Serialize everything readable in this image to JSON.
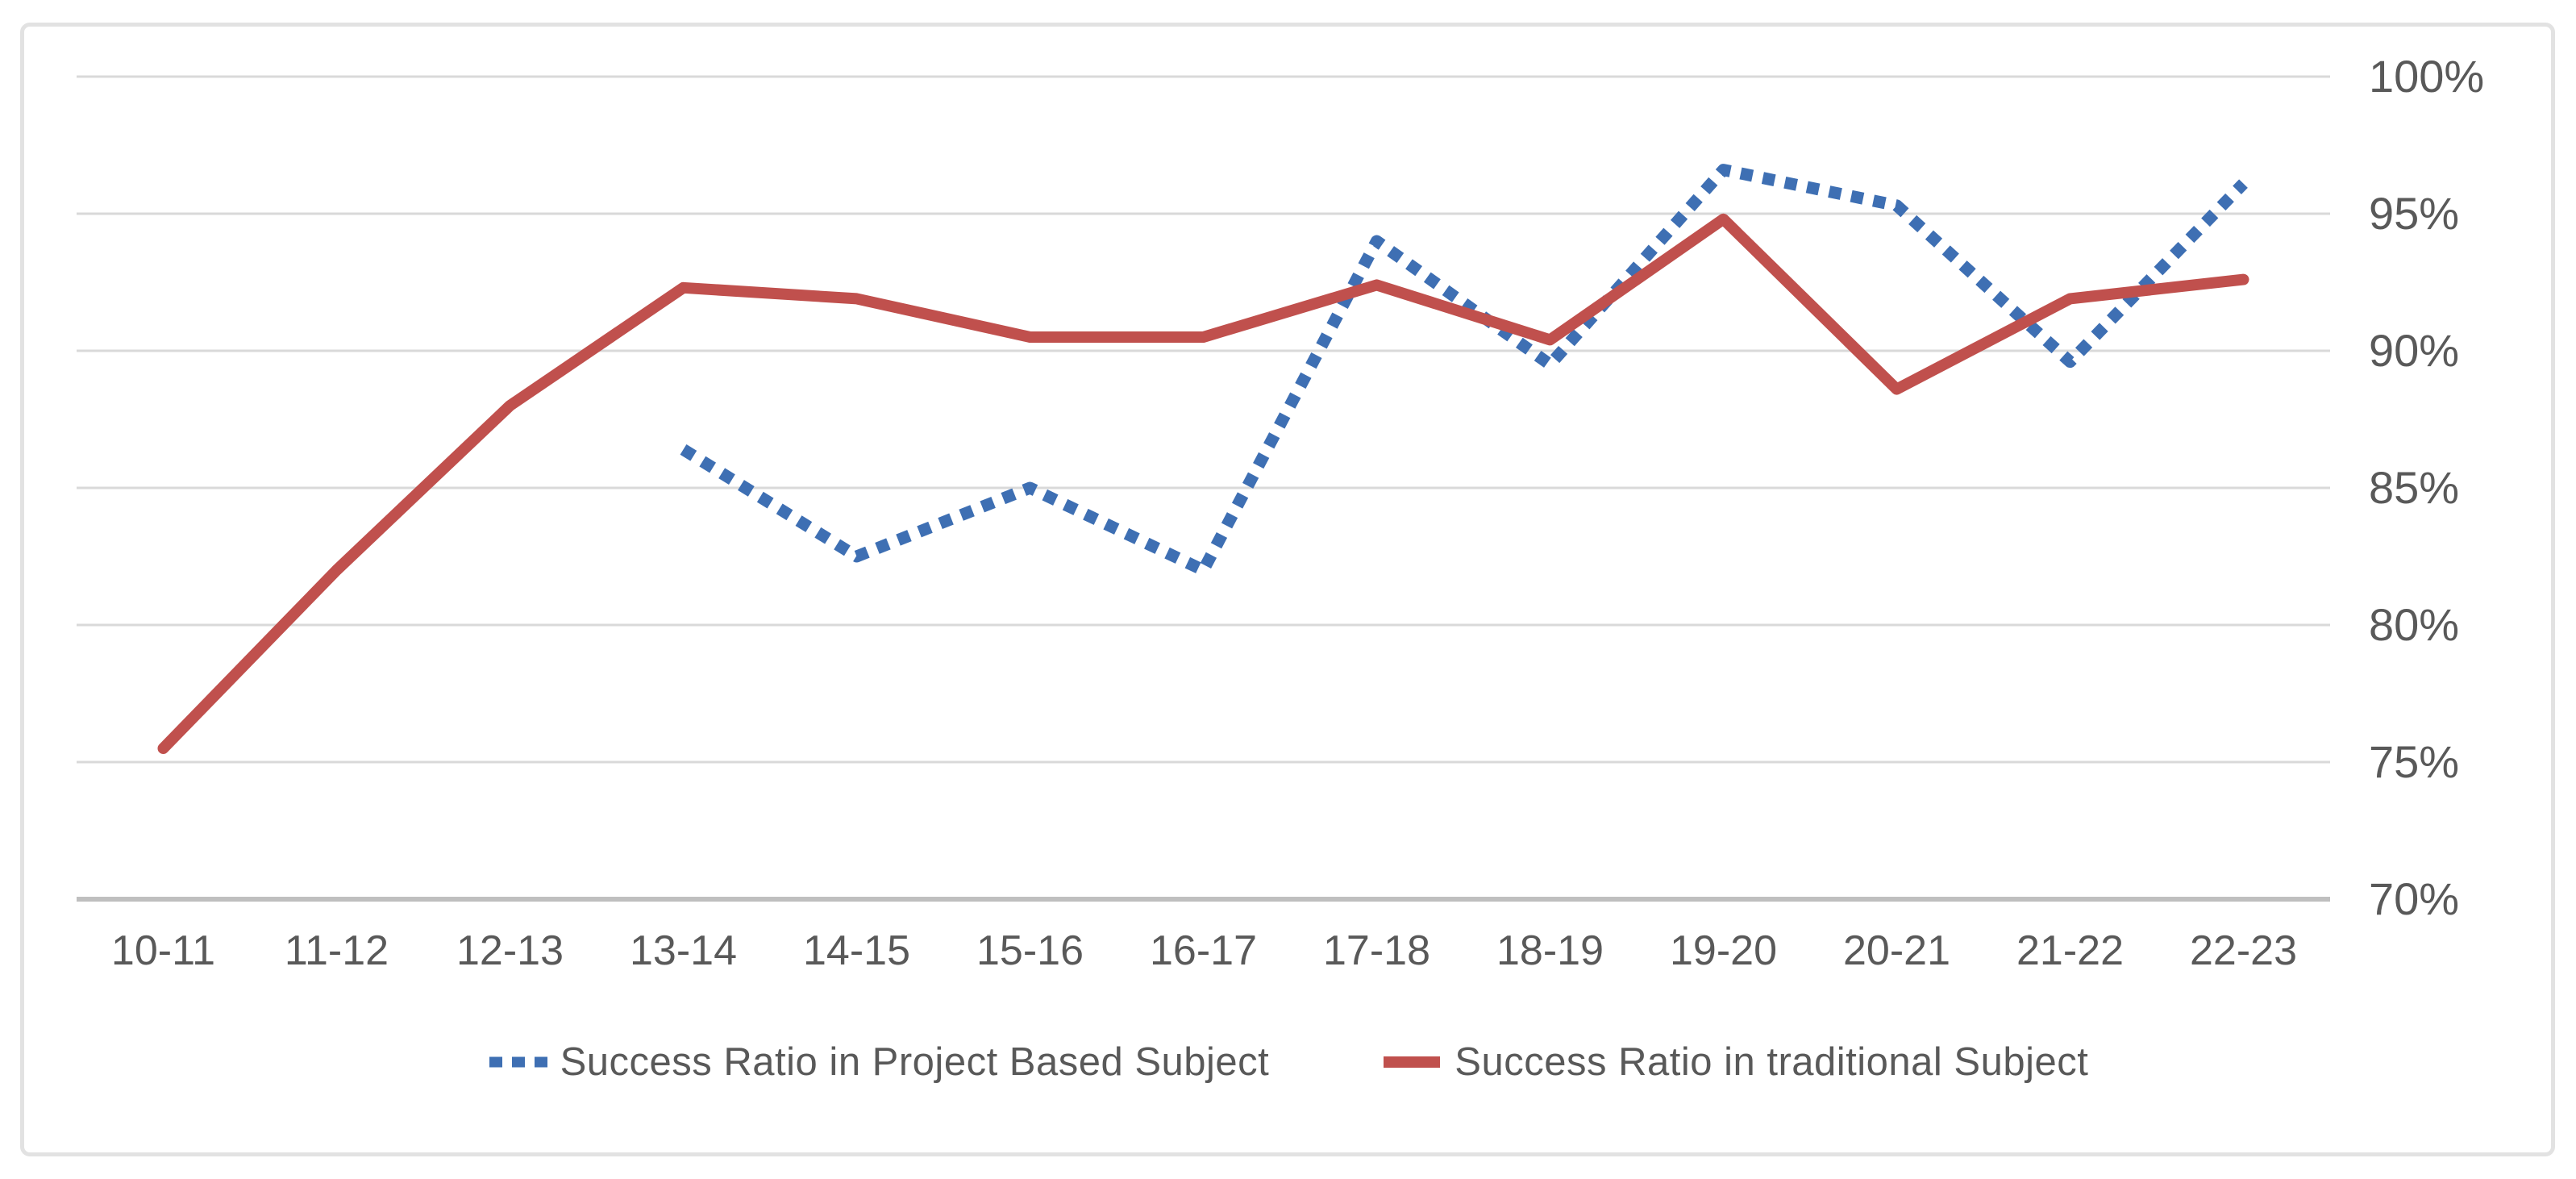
{
  "chart_data": {
    "type": "line",
    "title": "",
    "xlabel": "",
    "ylabel": "",
    "categories": [
      "10-11",
      "11-12",
      "12-13",
      "13-14",
      "14-15",
      "15-16",
      "16-17",
      "17-18",
      "18-19",
      "19-20",
      "20-21",
      "21-22",
      "22-23"
    ],
    "series": [
      {
        "name": "Success Ratio in Project Based Subject",
        "color": "#3E6FB3",
        "line_style": "dotted",
        "values": [
          null,
          null,
          null,
          86.4,
          82.5,
          85.0,
          82.0,
          94.0,
          89.5,
          96.6,
          95.3,
          89.6,
          96.1
        ]
      },
      {
        "name": "Success Ratio in traditional Subject",
        "color": "#C0504D",
        "line_style": "solid",
        "values": [
          75.5,
          82.0,
          88.0,
          92.3,
          91.9,
          90.5,
          90.5,
          92.4,
          90.4,
          94.8,
          88.6,
          91.9,
          92.6
        ]
      }
    ],
    "ylim": [
      70,
      100
    ],
    "y_ticks": [
      {
        "value": 100,
        "label": "100%"
      },
      {
        "value": 95,
        "label": "95%"
      },
      {
        "value": 90,
        "label": "90%"
      },
      {
        "value": 85,
        "label": "85%"
      },
      {
        "value": 80,
        "label": "80%"
      },
      {
        "value": 75,
        "label": "75%"
      },
      {
        "value": 70,
        "label": "70%"
      }
    ],
    "y_axis_side": "right",
    "grid": true,
    "legend_position": "bottom",
    "colors": {
      "gridline": "#D9D9D9",
      "axis_line": "#BFBFBF",
      "tick_label": "#595959",
      "legend_text": "#595959",
      "frame_border": "#E2E2E2"
    }
  }
}
